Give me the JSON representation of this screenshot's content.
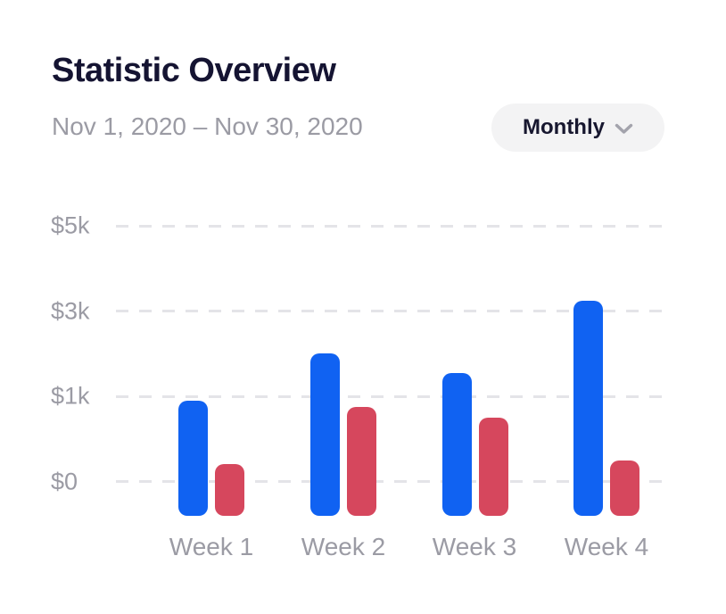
{
  "header": {
    "title": "Statistic Overview",
    "date_range": "Nov 1, 2020 – Nov 30, 2020",
    "period_selector": {
      "selected": "Monthly",
      "icon": "chevron-down-icon"
    }
  },
  "colors": {
    "title_text": "#151432",
    "muted_text": "#9b9ba4",
    "gridline": "#e4e4e8",
    "button_bg": "#f3f3f4",
    "bar_blue": "#1062F2",
    "bar_red": "#D6475D"
  },
  "chart_data": {
    "type": "bar",
    "title": "Statistic Overview",
    "subtitle": "Nov 1, 2020 – Nov 30, 2020",
    "categories": [
      "Week 1",
      "Week 2",
      "Week 3",
      "Week 4"
    ],
    "series": [
      {
        "name": "Blue",
        "color": "#1062F2",
        "values": [
          950,
          2000,
          1550,
          3250
        ]
      },
      {
        "name": "Red",
        "color": "#D6475D",
        "values": [
          200,
          870,
          750,
          250
        ]
      }
    ],
    "y_tick_labels": [
      "$5k",
      "$3k",
      "$1k",
      "$0"
    ],
    "y_tick_values": [
      5000,
      3000,
      1000,
      0
    ],
    "ylabel": "",
    "xlabel": "",
    "grid": "horizontal dashed",
    "legend": "none",
    "axis_note": "y ticks 0, 1k, 3k, 5k are evenly spaced; bars have rounded caps extending slightly below the $0 line"
  }
}
